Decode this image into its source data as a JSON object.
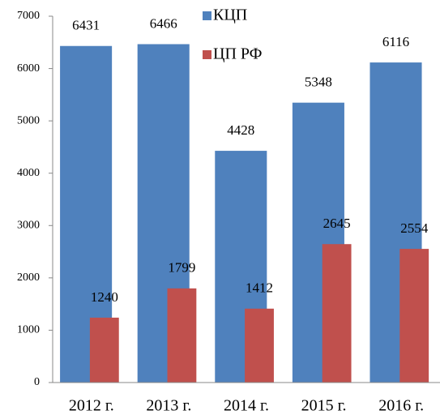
{
  "chart_data": {
    "type": "bar",
    "categories": [
      "2012 г.",
      "2013 г.",
      "2014 г.",
      "2015 г.",
      "2016 г."
    ],
    "series": [
      {
        "name": "КЦП",
        "color": "#4f81bd",
        "values": [
          6431,
          6466,
          4428,
          5348,
          6116
        ]
      },
      {
        "name": "ЦП РФ",
        "color": "#c0504d",
        "values": [
          1240,
          1799,
          1412,
          2645,
          2554
        ]
      }
    ],
    "ylim": [
      0,
      7000
    ],
    "yticks": [
      0,
      1000,
      2000,
      3000,
      4000,
      5000,
      6000,
      7000
    ],
    "grid": false,
    "legend": "top"
  }
}
